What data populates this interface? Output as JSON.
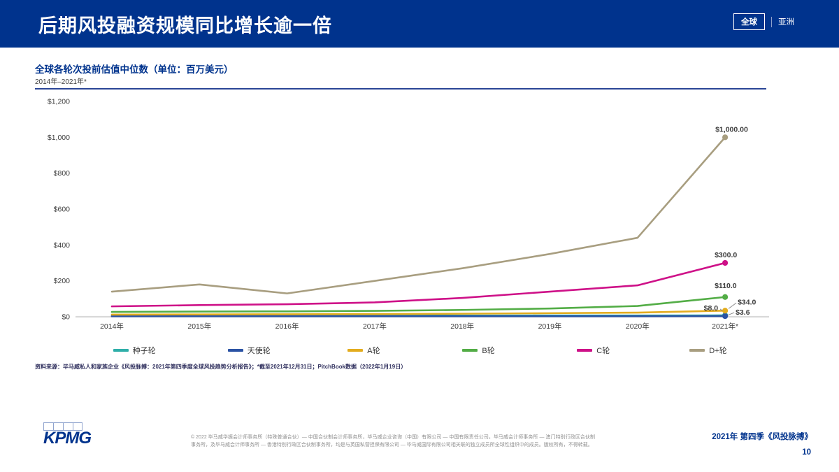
{
  "header": {
    "title": "后期风投融资规模同比增长逾一倍",
    "tabs": [
      {
        "label": "全球",
        "active": true
      },
      {
        "label": "亚洲",
        "active": false
      }
    ]
  },
  "chart": {
    "title": "全球各轮次投前估值中位数（单位：百万美元）",
    "subtitle": "2014年–2021年*"
  },
  "chart_data": {
    "type": "line",
    "title": "全球各轮次投前估值中位数（单位：百万美元）",
    "subtitle": "2014年–2021年*",
    "categories": [
      "2014年",
      "2015年",
      "2016年",
      "2017年",
      "2018年",
      "2019年",
      "2020年",
      "2021年*"
    ],
    "y_ticks": {
      "labels": [
        "$0",
        "$200",
        "$400",
        "$600",
        "$800",
        "$1,000",
        "$1,200"
      ],
      "values": [
        0,
        200,
        400,
        600,
        800,
        1000,
        1200
      ]
    },
    "ylim": [
      0,
      1200
    ],
    "grid": false,
    "legend_position": "bottom",
    "series": [
      {
        "key": "seed",
        "name": "种子轮",
        "color": "#2FAFA9",
        "values": [
          5,
          5.5,
          6,
          6,
          6.5,
          7,
          7,
          8
        ],
        "end_label": "$8.0"
      },
      {
        "key": "angel",
        "name": "天使轮",
        "color": "#2B53A4",
        "values": [
          3,
          3,
          3,
          3,
          3,
          3,
          3.2,
          3.6
        ],
        "end_label": "$3.6"
      },
      {
        "key": "a",
        "name": "A轮",
        "color": "#E3AC1E",
        "values": [
          12,
          13,
          14,
          15,
          17,
          20,
          23,
          34
        ],
        "end_label": "$34.0"
      },
      {
        "key": "b",
        "name": "B轮",
        "color": "#53AD46",
        "values": [
          27,
          29,
          30,
          33,
          38,
          46,
          60,
          110
        ],
        "end_label": "$110.0"
      },
      {
        "key": "c",
        "name": "C轮",
        "color": "#CE1188",
        "values": [
          58,
          65,
          70,
          80,
          105,
          140,
          175,
          300
        ],
        "end_label": "$300.0"
      },
      {
        "key": "d-plus",
        "name": "D+轮",
        "color": "#A89E80",
        "values": [
          140,
          180,
          130,
          200,
          270,
          350,
          440,
          1000
        ],
        "end_label": "$1,000.00"
      }
    ]
  },
  "source_note": "资料来源：毕马威私人和家族企业《风投脉搏：2021年第四季度全球风投趋势分析报告》；*截至2021年12月31日；PitchBook数据（2022年1月19日）",
  "footer": {
    "logo": "KPMG",
    "copyright": "© 2022 毕马威华振会计师事务所（特殊普通合伙）— 中国合伙制会计师事务所，毕马威企业咨询（中国）有限公司 — 中国有限责任公司，毕马威会计师事务所 — 澳门特别行政区合伙制事务所，及毕马威会计师事务所 — 香港特别行政区合伙制事务所，均是与英国私营担保有限公司 — 毕马威国际有限公司相关联的独立成员所全球性组织中的成员。版权所有，不得转载。",
    "report": "2021年 第四季《风投脉搏》",
    "page": "10"
  },
  "colors": {
    "brand_blue": "#00338D",
    "axis_gray": "#D9D9D9",
    "label_dark": "#3C3C3C"
  }
}
